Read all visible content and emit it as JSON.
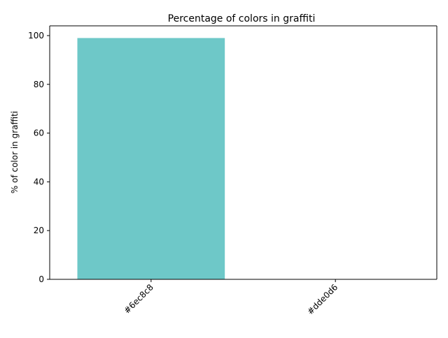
{
  "chart_data": {
    "type": "bar",
    "title": "Percentage of colors in graffiti",
    "xlabel": "",
    "ylabel": "% of color in graffiti",
    "categories": [
      "#6ec8c8",
      "#dde0d6"
    ],
    "values": [
      99,
      0
    ],
    "bar_colors": [
      "#6ec8c8",
      "#dde0d6"
    ],
    "ylim": [
      0,
      104
    ],
    "yticks": [
      0,
      20,
      40,
      60,
      80,
      100
    ],
    "grid": false,
    "legend": "none"
  }
}
